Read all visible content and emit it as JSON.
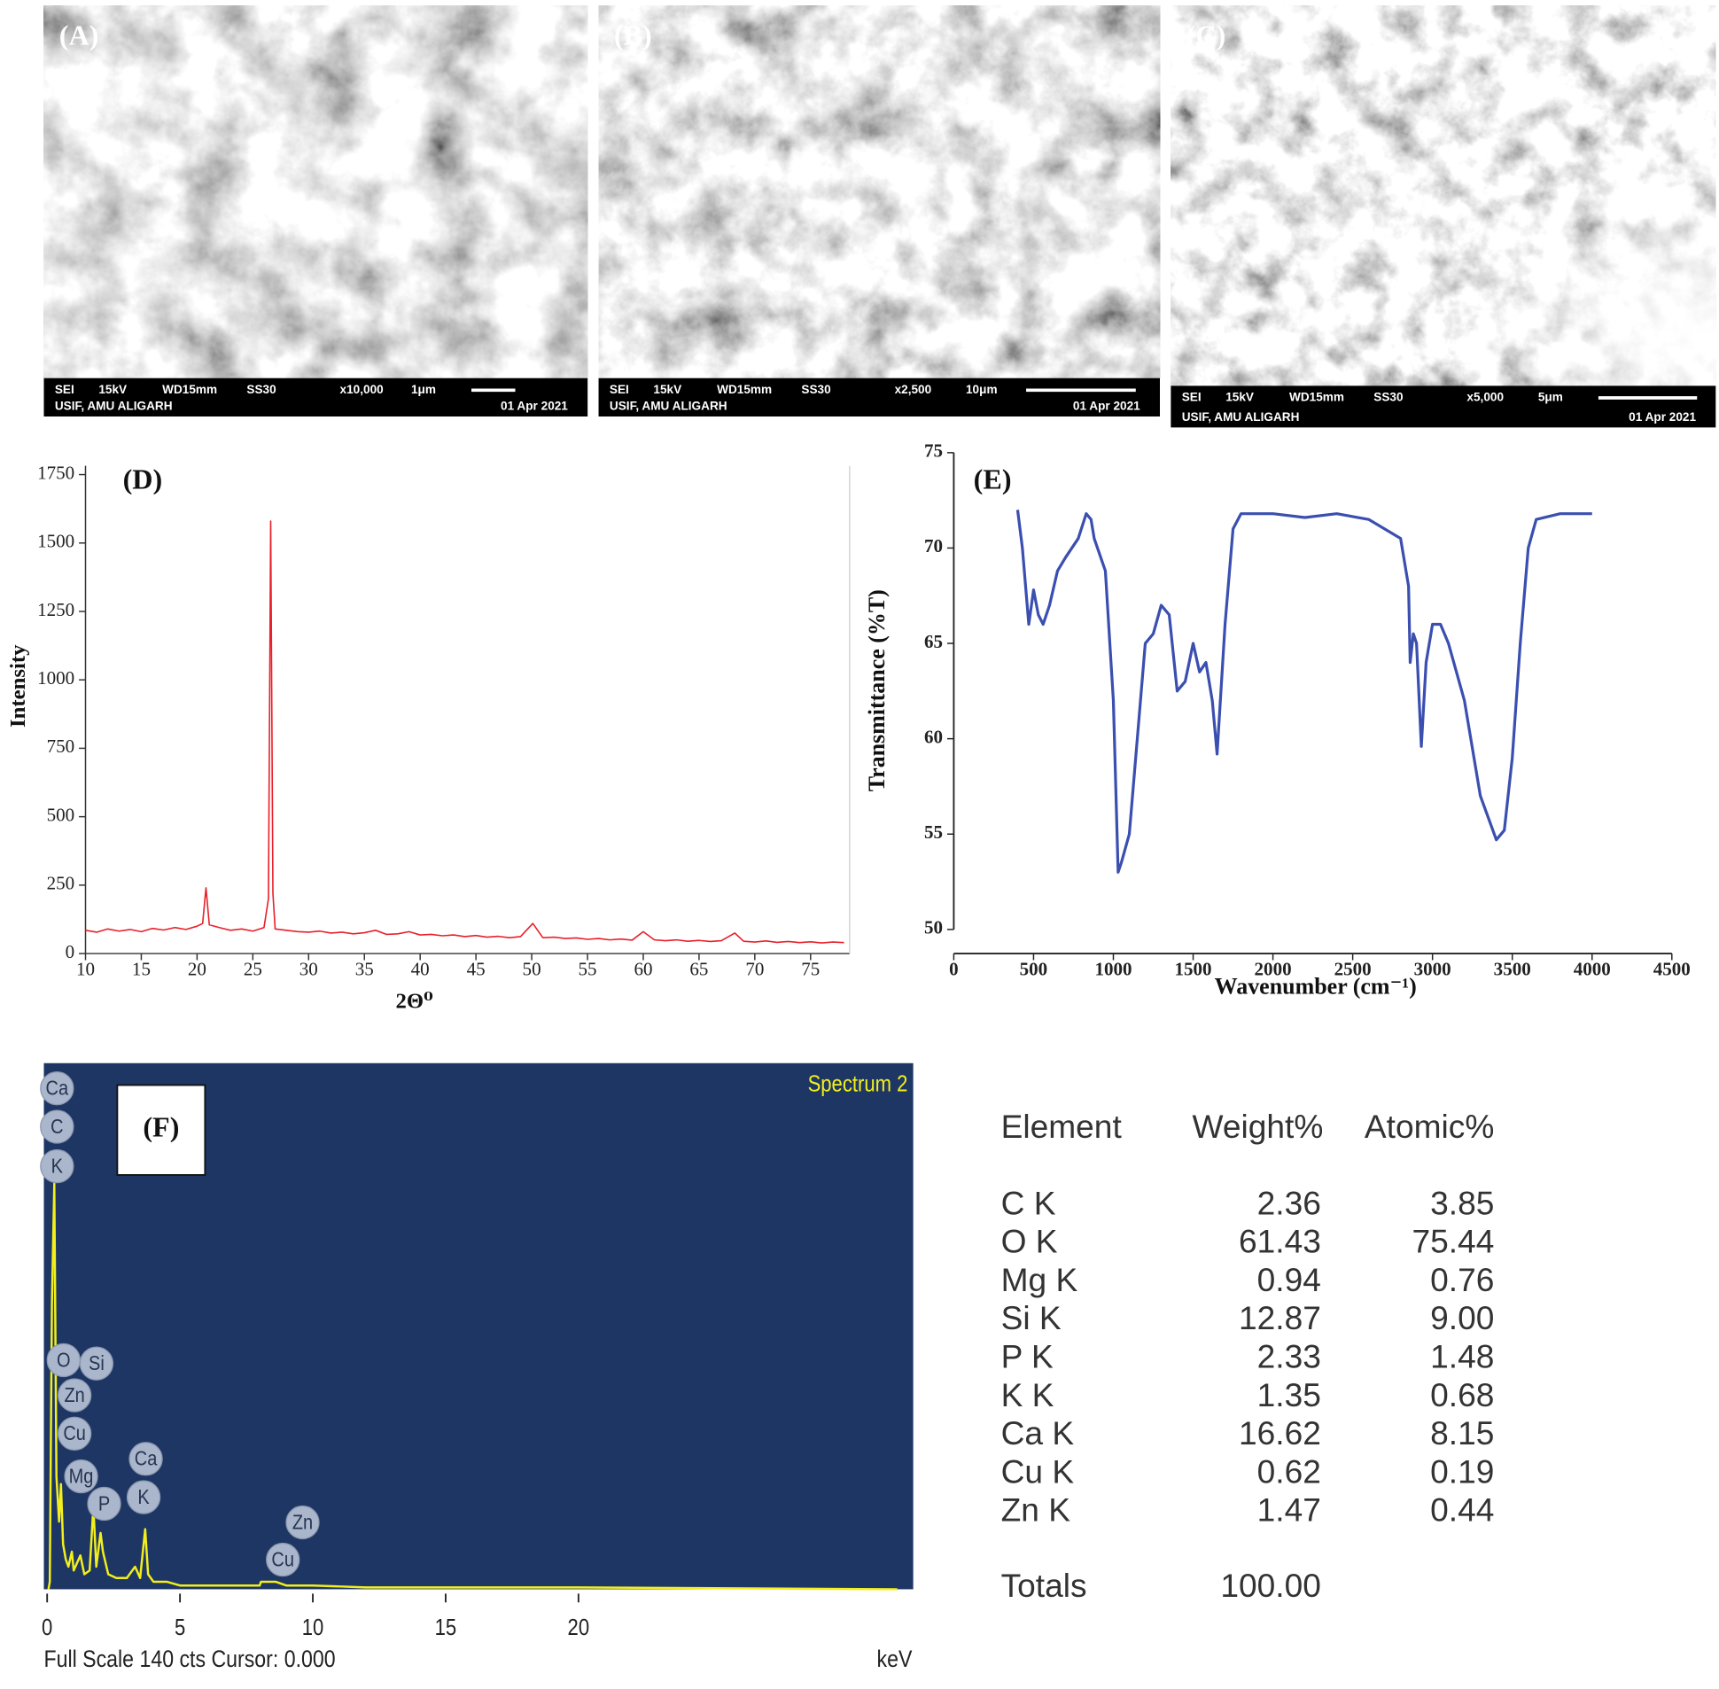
{
  "sem_images": [
    {
      "label": "(A)",
      "info": [
        "SEI",
        "15kV",
        "WD15mm",
        "SS30",
        "x10,000",
        "1μm"
      ],
      "footer": [
        "USIF, AMU ALIGARH",
        "01 Apr 2021"
      ]
    },
    {
      "label": "(B)",
      "info": [
        "SEI",
        "15kV",
        "WD15mm",
        "SS30",
        "x2,500",
        "10μm"
      ],
      "footer": [
        "USIF, AMU ALIGARH",
        "01 Apr 2021"
      ]
    },
    {
      "label": "(C)",
      "info": [
        "SEI",
        "15kV",
        "WD15mm",
        "SS30",
        "x5,000",
        "5μm"
      ],
      "footer": [
        "USIF, AMU ALIGARH",
        "01 Apr 2021"
      ]
    }
  ],
  "chart_data": [
    {
      "type": "line",
      "label": "(D)",
      "xlabel": "2Θ⁰",
      "ylabel": "Intensity",
      "color": "#e8202a",
      "xlim": [
        10,
        78.5
      ],
      "ylim": [
        0,
        1750
      ],
      "xticks": [
        10,
        15,
        20,
        25,
        30,
        35,
        40,
        45,
        50,
        55,
        60,
        65,
        70,
        75
      ],
      "yticks": [
        0,
        250,
        500,
        750,
        1000,
        1250,
        1500,
        1750
      ],
      "x": [
        10,
        11,
        12,
        13,
        14,
        15,
        16,
        17,
        18,
        19,
        20,
        20.5,
        20.8,
        21.1,
        22,
        23,
        24,
        25,
        26,
        26.4,
        26.6,
        26.8,
        27,
        28,
        29,
        30,
        31,
        32,
        33,
        34,
        35,
        36,
        37,
        38,
        39,
        40,
        41,
        42,
        43,
        44,
        45,
        46,
        47,
        48,
        49,
        50.1,
        51,
        52,
        53,
        54,
        55,
        56,
        57,
        58,
        59,
        60,
        61,
        62,
        63,
        64,
        65,
        66,
        67,
        68.2,
        69,
        70,
        71,
        72,
        73,
        74,
        75,
        76,
        77,
        78
      ],
      "values": [
        85,
        78,
        90,
        82,
        88,
        80,
        92,
        86,
        95,
        88,
        100,
        110,
        240,
        105,
        95,
        85,
        90,
        82,
        95,
        200,
        1580,
        220,
        90,
        85,
        80,
        78,
        82,
        75,
        78,
        72,
        76,
        85,
        70,
        72,
        80,
        68,
        70,
        65,
        68,
        62,
        66,
        60,
        63,
        58,
        62,
        110,
        58,
        60,
        55,
        57,
        52,
        55,
        50,
        53,
        49,
        80,
        50,
        47,
        50,
        45,
        48,
        44,
        47,
        75,
        45,
        42,
        46,
        41,
        44,
        40,
        43,
        39,
        42,
        40
      ]
    },
    {
      "type": "line",
      "label": "(E)",
      "xlabel": "Wavenumber (cm⁻¹)",
      "ylabel": "Transmittance (%T)",
      "color": "#3a4fb0",
      "xlim": [
        0,
        4500
      ],
      "ylim": [
        50,
        75
      ],
      "xticks": [
        0,
        500,
        1000,
        1500,
        2000,
        2500,
        3000,
        3500,
        4000,
        4500
      ],
      "yticks": [
        50,
        55,
        60,
        65,
        70,
        75
      ],
      "x": [
        400,
        430,
        470,
        500,
        530,
        560,
        600,
        650,
        700,
        780,
        830,
        860,
        880,
        950,
        1000,
        1030,
        1050,
        1100,
        1150,
        1200,
        1250,
        1300,
        1350,
        1400,
        1450,
        1500,
        1540,
        1580,
        1620,
        1650,
        1700,
        1750,
        1800,
        2000,
        2200,
        2400,
        2600,
        2800,
        2850,
        2860,
        2880,
        2900,
        2930,
        2960,
        3000,
        3050,
        3100,
        3200,
        3300,
        3400,
        3450,
        3500,
        3550,
        3600,
        3650,
        3800,
        4000
      ],
      "values": [
        72,
        70,
        66,
        67.8,
        66.5,
        66,
        67,
        68.8,
        69.5,
        70.5,
        71.8,
        71.5,
        70.5,
        68.8,
        62,
        53,
        53.5,
        55,
        60,
        65,
        65.5,
        67,
        66.5,
        62.5,
        63,
        65,
        63.5,
        64,
        62,
        59.2,
        66,
        71,
        71.8,
        71.8,
        71.6,
        71.8,
        71.5,
        70.5,
        68,
        64,
        65.5,
        65,
        59.6,
        64,
        66,
        66,
        65,
        62,
        57,
        54.7,
        55.2,
        59,
        65,
        70,
        71.5,
        71.8,
        71.8
      ]
    },
    {
      "type": "line",
      "label": "(F)",
      "title": "Spectrum 2",
      "footer": "Full Scale 140 cts Cursor: 0.000",
      "xlabel": "keV",
      "color": "#f2ef1c",
      "background": "#1e3664",
      "xlim": [
        0,
        32.6
      ],
      "ylim": [
        0,
        140
      ],
      "xticks": [
        0,
        5,
        10,
        15,
        20
      ],
      "x": [
        0.05,
        0.1,
        0.18,
        0.27,
        0.35,
        0.45,
        0.52,
        0.6,
        0.7,
        0.8,
        0.93,
        1.0,
        1.25,
        1.4,
        1.6,
        1.74,
        1.85,
        2.01,
        2.1,
        2.3,
        2.6,
        3.0,
        3.31,
        3.5,
        3.69,
        3.8,
        4.0,
        4.5,
        5,
        6,
        7,
        8,
        8.05,
        8.6,
        9,
        10,
        12,
        20,
        32
      ],
      "values": [
        0,
        2,
        76,
        108,
        30,
        18,
        28,
        12,
        8,
        6,
        10,
        5,
        9,
        4,
        5,
        22,
        6,
        15,
        10,
        4,
        3,
        3,
        6,
        3,
        16,
        4,
        2,
        2,
        1,
        1,
        1,
        1,
        2,
        2,
        1,
        1,
        0.5,
        0.5,
        0
      ],
      "peak_labels": [
        "Ca",
        "C",
        "K",
        "O",
        "Si",
        "Zn",
        "Cu",
        "Mg",
        "P",
        "Ca",
        "K",
        "Zn",
        "Cu"
      ]
    }
  ],
  "eds_table": {
    "header": [
      "Element",
      "Weight%",
      "Atomic%"
    ],
    "rows": [
      [
        "C K",
        "2.36",
        "3.85"
      ],
      [
        "O K",
        "61.43",
        "75.44"
      ],
      [
        "Mg K",
        "0.94",
        "0.76"
      ],
      [
        "Si K",
        "12.87",
        "9.00"
      ],
      [
        "P K",
        "2.33",
        "1.48"
      ],
      [
        "K K",
        "1.35",
        "0.68"
      ],
      [
        "Ca K",
        "16.62",
        "8.15"
      ],
      [
        "Cu K",
        "0.62",
        "0.19"
      ],
      [
        "Zn K",
        "1.47",
        "0.44"
      ]
    ],
    "totals": [
      "Totals",
      "100.00"
    ]
  }
}
